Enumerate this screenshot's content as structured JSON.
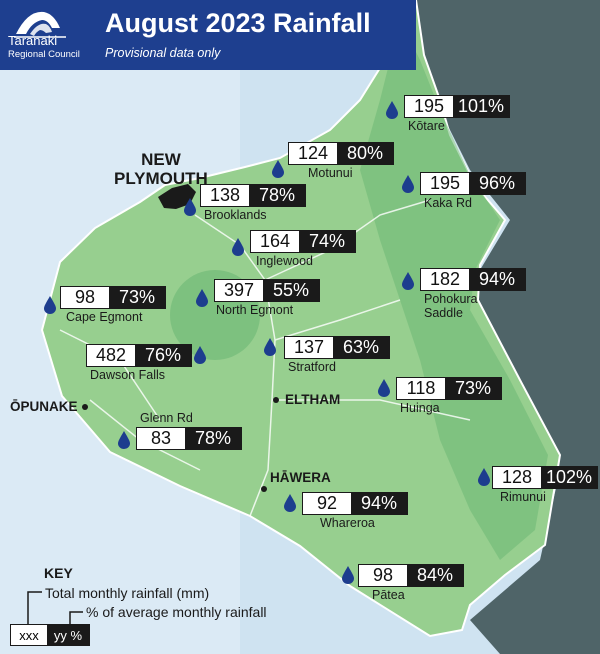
{
  "header": {
    "org_name": "Taranaki",
    "org_sub": "Regional Council",
    "title": "August 2023 Rainfall",
    "subtitle": "Provisional data only"
  },
  "colors": {
    "sea": "#cfe3f1",
    "land": "#97cf8f",
    "land_dark": "#6cb874",
    "ocean_edge": "#4f6468",
    "header": "#1e3f8f",
    "drop": "#1d3d8e"
  },
  "stations": [
    {
      "name": "Kōtare",
      "total": "195",
      "percent": "101%"
    },
    {
      "name": "Motunui",
      "total": "124",
      "percent": "80%"
    },
    {
      "name": "Kaka Rd",
      "total": "195",
      "percent": "96%"
    },
    {
      "name": "Brooklands",
      "total": "138",
      "percent": "78%"
    },
    {
      "name": "Inglewood",
      "total": "164",
      "percent": "74%"
    },
    {
      "name": "Pohokura Saddle",
      "name_line1": "Pohokura",
      "name_line2": "Saddle",
      "total": "182",
      "percent": "94%"
    },
    {
      "name": "Cape Egmont",
      "total": "98",
      "percent": "73%"
    },
    {
      "name": "North Egmont",
      "total": "397",
      "percent": "55%"
    },
    {
      "name": "Stratford",
      "total": "137",
      "percent": "63%"
    },
    {
      "name": "Dawson Falls",
      "total": "482",
      "percent": "76%"
    },
    {
      "name": "Huinga",
      "total": "118",
      "percent": "73%"
    },
    {
      "name": "Glenn Rd",
      "total": "83",
      "percent": "78%"
    },
    {
      "name": "Rimunui",
      "total": "128",
      "percent": "102%"
    },
    {
      "name": "Whareroa",
      "total": "92",
      "percent": "94%"
    },
    {
      "name": "Pātea",
      "total": "98",
      "percent": "84%"
    }
  ],
  "towns": {
    "new_plymouth_line1": "NEW",
    "new_plymouth_line2": "PLYMOUTH",
    "opunake": "ŌPUNAKE",
    "eltham": "ELTHAM",
    "hawera": "HĀWERA"
  },
  "key": {
    "title": "KEY",
    "total_label": "Total monthly rainfall (mm)",
    "percent_label": "% of average monthly rainfall",
    "total_sample": "xxx",
    "percent_sample": "yy %"
  }
}
